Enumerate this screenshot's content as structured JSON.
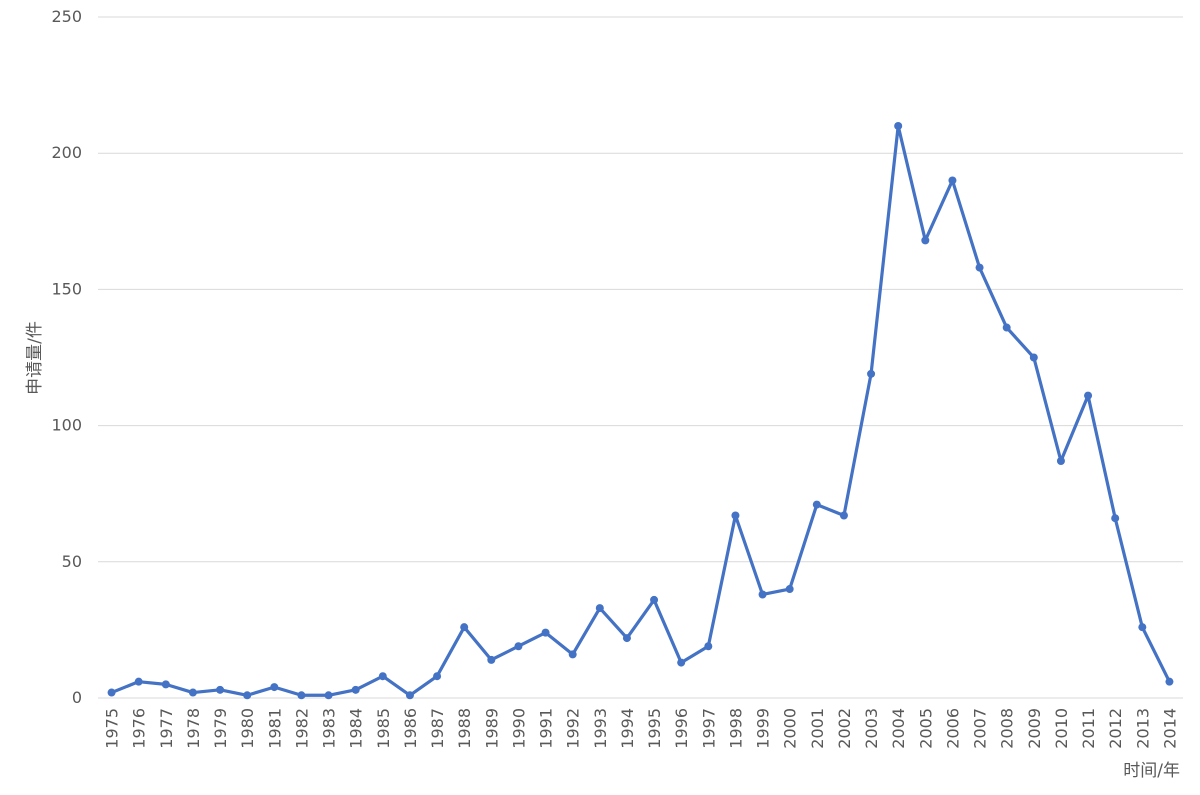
{
  "chart_data": {
    "type": "line",
    "xlabel": "时间/年",
    "ylabel": "申请量/件",
    "ylim": [
      0,
      250
    ],
    "yticks": [
      0,
      50,
      100,
      150,
      200,
      250
    ],
    "grid": true,
    "legend": "none",
    "categories": [
      "1975",
      "1976",
      "1977",
      "1978",
      "1979",
      "1980",
      "1981",
      "1982",
      "1983",
      "1984",
      "1985",
      "1986",
      "1987",
      "1988",
      "1989",
      "1990",
      "1991",
      "1992",
      "1993",
      "1994",
      "1995",
      "1996",
      "1997",
      "1998",
      "1999",
      "2000",
      "2001",
      "2002",
      "2003",
      "2004",
      "2005",
      "2006",
      "2007",
      "2008",
      "2009",
      "2010",
      "2011",
      "2012",
      "2013",
      "2014"
    ],
    "series": [
      {
        "color": "#4472c4",
        "values": [
          2,
          6,
          5,
          2,
          3,
          1,
          4,
          1,
          1,
          3,
          8,
          1,
          8,
          26,
          14,
          19,
          24,
          16,
          33,
          22,
          36,
          13,
          19,
          67,
          38,
          40,
          71,
          67,
          119,
          210,
          168,
          190,
          158,
          136,
          125,
          87,
          111,
          66,
          26,
          6
        ]
      }
    ]
  }
}
